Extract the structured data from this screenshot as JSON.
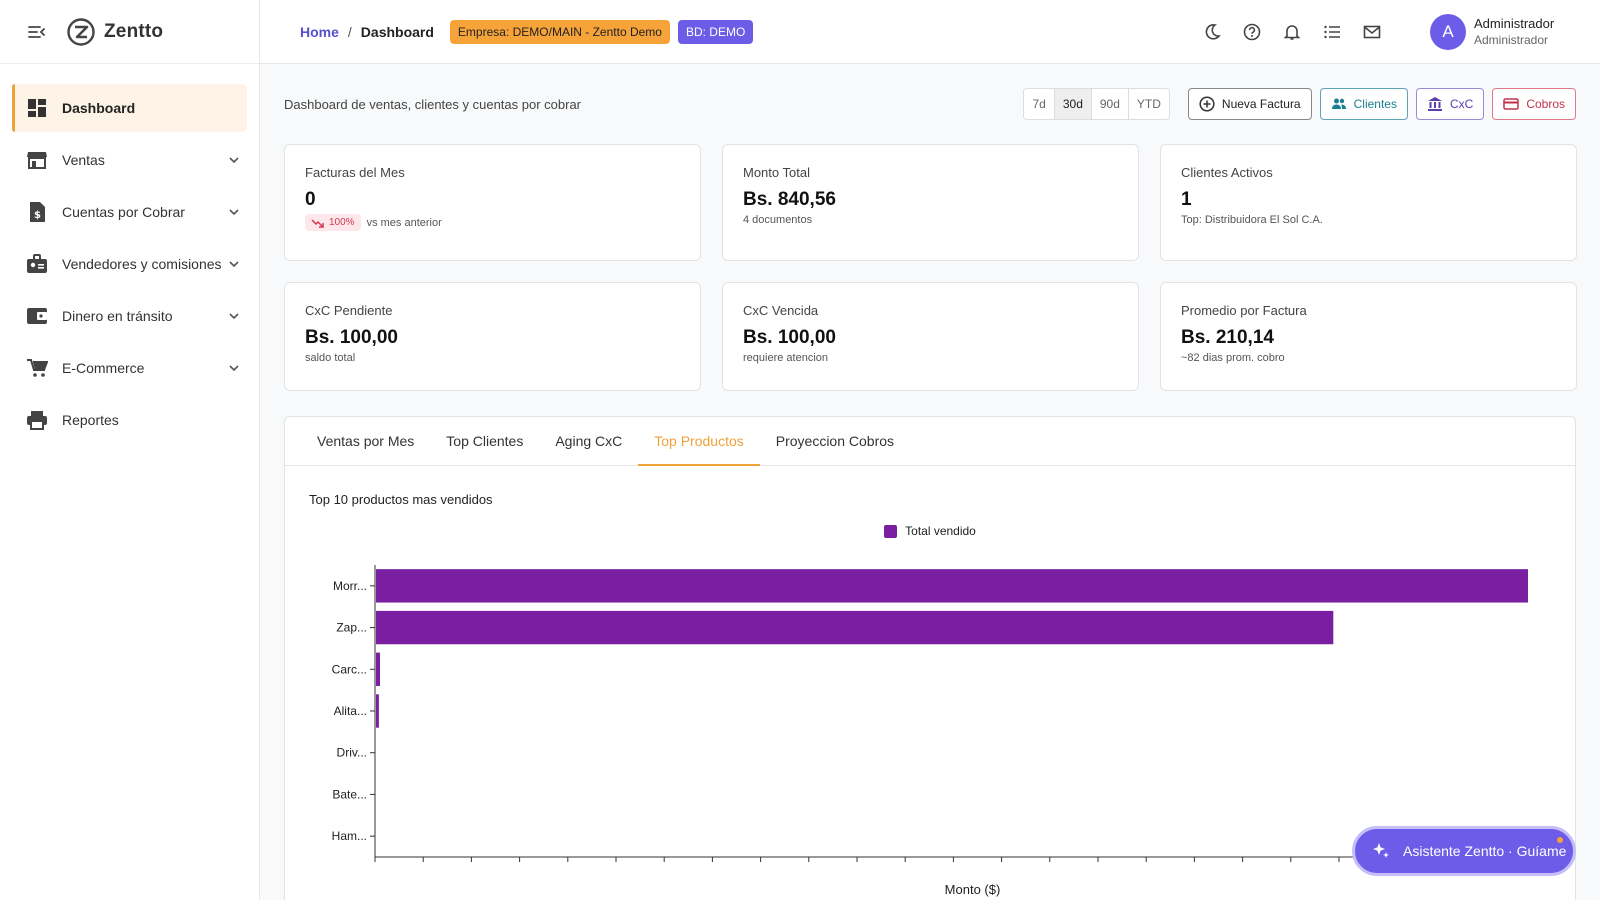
{
  "brand": {
    "name": "Zentto"
  },
  "sidebar": {
    "items": [
      {
        "label": "Dashboard",
        "icon": "dashboard-icon",
        "active": true
      },
      {
        "label": "Ventas",
        "icon": "store-icon"
      },
      {
        "label": "Cuentas por Cobrar",
        "icon": "invoice-icon"
      },
      {
        "label": "Vendedores y comisiones",
        "icon": "badge-icon"
      },
      {
        "label": "Dinero en tránsito",
        "icon": "wallet-icon"
      },
      {
        "label": "E-Commerce",
        "icon": "cart-icon"
      },
      {
        "label": "Reportes",
        "icon": "printer-icon"
      }
    ]
  },
  "header": {
    "breadcrumb_home": "Home",
    "breadcrumb_sep": "/",
    "breadcrumb_current": "Dashboard",
    "company_chip": "Empresa: DEMO/MAIN - Zentto Demo",
    "db_chip": "BD: DEMO",
    "icons": [
      "moon-icon",
      "help-icon",
      "bell-icon",
      "list-icon",
      "mail-icon"
    ],
    "user": {
      "initial": "A",
      "name": "Administrador",
      "role": "Administrador"
    }
  },
  "toolbar": {
    "subtitle": "Dashboard de ventas, clientes y cuentas por cobrar",
    "ranges": [
      "7d",
      "30d",
      "90d",
      "YTD"
    ],
    "selected_range": "30d",
    "buttons": {
      "new_invoice": "Nueva Factura",
      "clients": "Clientes",
      "cxc": "CxC",
      "cobros": "Cobros"
    }
  },
  "kpis": [
    {
      "title": "Facturas del Mes",
      "value": "0",
      "trend": "100%",
      "sub": "vs mes anterior"
    },
    {
      "title": "Monto Total",
      "value": "Bs. 840,56",
      "sub": "4 documentos"
    },
    {
      "title": "Clientes Activos",
      "value": "1",
      "sub": "Top: Distribuidora El Sol C.A."
    },
    {
      "title": "CxC Pendiente",
      "value": "Bs. 100,00",
      "sub": "saldo total"
    },
    {
      "title": "CxC Vencida",
      "value": "Bs. 100,00",
      "sub": "requiere atencion"
    },
    {
      "title": "Promedio por Factura",
      "value": "Bs. 210,14",
      "sub": "~82 dias prom. cobro"
    }
  ],
  "tabs": [
    "Ventas por Mes",
    "Top Clientes",
    "Aging CxC",
    "Top Productos",
    "Proyeccion Cobros"
  ],
  "active_tab": "Top Productos",
  "chart_data": {
    "type": "bar",
    "orientation": "horizontal",
    "title": "Top 10 productos mas vendidos",
    "categories": [
      "Morr...",
      "Zap...",
      "Carc...",
      "Alita...",
      "Driv...",
      "Bate...",
      "Ham..."
    ],
    "series": [
      {
        "name": "Total vendido",
        "color": "#7b1fa2",
        "values": [
          1000,
          831,
          3.5,
          2.5,
          0,
          0,
          0
        ]
      }
    ],
    "xlabel": "Monto ($)",
    "legend": "top-center"
  },
  "assistant": {
    "label": "Asistente Zentto · Guíame"
  }
}
